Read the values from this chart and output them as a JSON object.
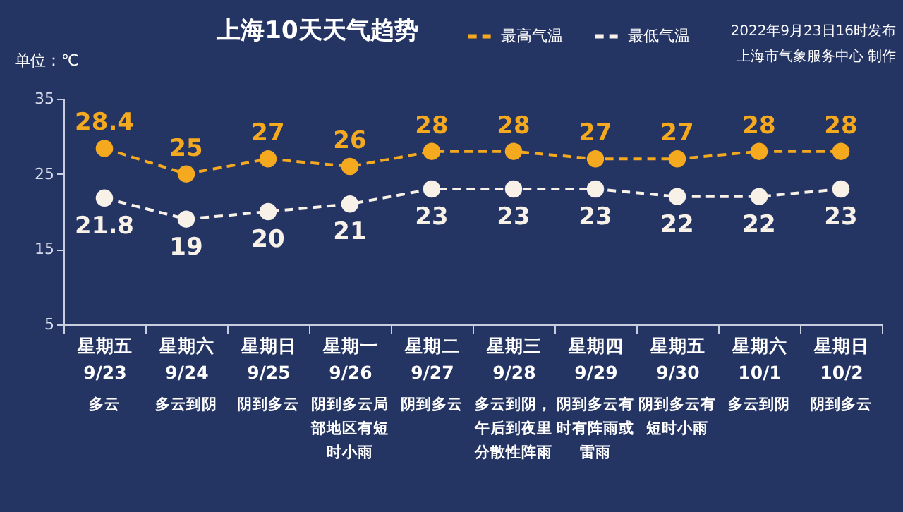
{
  "chart_data": {
    "type": "line",
    "title": "上海10天天气趋势",
    "ylabel": "单位：℃",
    "categories": [
      "星期五\n9/23",
      "星期六\n9/24",
      "星期日\n9/25",
      "星期一\n9/26",
      "星期二\n9/27",
      "星期三\n9/28",
      "星期四\n9/29",
      "星期五\n9/30",
      "星期六\n10/1",
      "星期日\n10/2"
    ],
    "series": [
      {
        "name": "最高气温",
        "color": "#f5a91e",
        "values": [
          28.4,
          25,
          27,
          26,
          28,
          28,
          27,
          27,
          28,
          28
        ]
      },
      {
        "name": "最低气温",
        "color": "#f7f1e8",
        "values": [
          21.8,
          19,
          20,
          21,
          23,
          23,
          23,
          22,
          22,
          23
        ]
      }
    ],
    "ylim": [
      5,
      35
    ],
    "yticks": [
      5,
      15,
      25,
      35
    ],
    "data_labels": true,
    "legend": "top right",
    "marker": "circle",
    "line_style": "dashed",
    "annotations": [
      "多云",
      "多云到阴",
      "阴到多云",
      "阴到多云局部地区有短时小雨",
      "阴到多云",
      "多云到阴，午后到夜里分散性阵雨",
      "阴到多云有时有阵雨或雷雨",
      "阴到多云有短时小雨",
      "多云到阴",
      "阴到多云",
      "2022年9月23日16时发布",
      "上海市气象服务中心 制作"
    ]
  }
}
